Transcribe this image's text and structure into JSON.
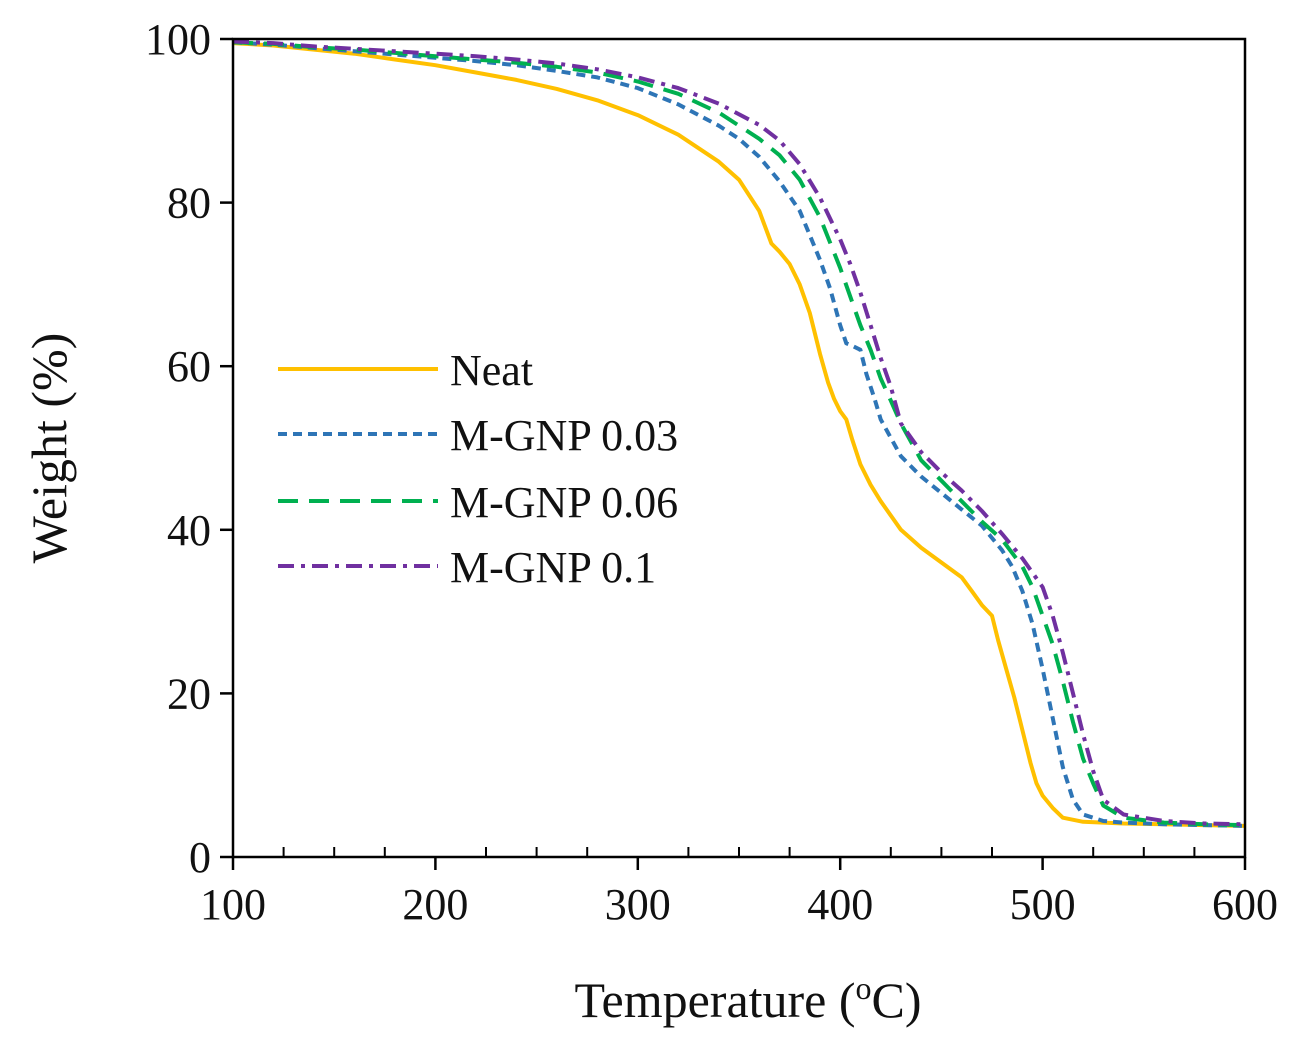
{
  "chart_data": {
    "type": "line",
    "title": "",
    "xlabel_main": "Temperature (",
    "xlabel_sup": "o",
    "xlabel_end": "C)",
    "ylabel": "Weight  (%)",
    "xlim": [
      100,
      600
    ],
    "ylim": [
      0,
      100
    ],
    "xticks": [
      100,
      200,
      300,
      400,
      500,
      600
    ],
    "yticks": [
      0,
      20,
      40,
      60,
      80,
      100
    ],
    "xtick_labels": [
      "100",
      "200",
      "300",
      "400",
      "500",
      "600"
    ],
    "ytick_labels": [
      "0",
      "20",
      "40",
      "60",
      "80",
      "100"
    ],
    "minor_x_step": 25,
    "legend_position": "center-left",
    "series": [
      {
        "name": "Neat",
        "color": "#FFC000",
        "dash": "solid",
        "x": [
          100,
          120,
          140,
          160,
          180,
          200,
          220,
          240,
          260,
          280,
          300,
          320,
          340,
          350,
          360,
          366,
          370,
          375,
          380,
          385,
          390,
          394,
          397,
          400,
          403,
          406,
          410,
          415,
          420,
          430,
          440,
          450,
          460,
          465,
          470,
          475,
          478,
          482,
          486,
          490,
          494,
          497,
          500,
          505,
          510,
          520,
          540,
          560,
          580,
          600
        ],
        "y": [
          99.5,
          99.2,
          98.7,
          98.2,
          97.5,
          96.8,
          95.9,
          95,
          93.9,
          92.5,
          90.7,
          88.3,
          85,
          82.8,
          79,
          75,
          74,
          72.5,
          70,
          66.5,
          61.5,
          58,
          56,
          54.5,
          53.5,
          51,
          48,
          45.5,
          43.5,
          40,
          37.8,
          36,
          34.2,
          32.5,
          30.8,
          29.5,
          26.5,
          23,
          19.5,
          15.5,
          11.5,
          9,
          7.5,
          6,
          4.8,
          4.3,
          4.1,
          4,
          3.9,
          3.8
        ]
      },
      {
        "name": "M-GNP 0.03",
        "color": "#2E75B6",
        "dash": "short",
        "x": [
          100,
          120,
          140,
          160,
          180,
          200,
          220,
          240,
          260,
          280,
          300,
          320,
          340,
          350,
          360,
          370,
          380,
          390,
          395,
          400,
          403,
          406,
          410,
          413,
          417,
          420,
          430,
          440,
          450,
          460,
          470,
          475,
          480,
          485,
          490,
          495,
          500,
          505,
          510,
          515,
          520,
          530,
          540,
          560,
          580,
          600
        ],
        "y": [
          99.6,
          99.3,
          98.9,
          98.5,
          98.1,
          97.7,
          97.3,
          96.8,
          96.1,
          95.3,
          94,
          92,
          89.4,
          87.8,
          85.6,
          82.6,
          79,
          73,
          69.5,
          65,
          62.8,
          62.5,
          62,
          59,
          56,
          53.5,
          49,
          46.5,
          44.5,
          42.5,
          40.5,
          39,
          37.5,
          35.5,
          32.5,
          28.5,
          23,
          17,
          11,
          7,
          5.2,
          4.4,
          4.2,
          4,
          3.9,
          3.8
        ]
      },
      {
        "name": "M-GNP 0.06",
        "color": "#00B050",
        "dash": "long",
        "x": [
          100,
          120,
          140,
          160,
          180,
          200,
          220,
          240,
          260,
          280,
          300,
          320,
          340,
          360,
          370,
          380,
          390,
          400,
          410,
          415,
          420,
          425,
          430,
          440,
          450,
          460,
          470,
          480,
          490,
          495,
          500,
          505,
          510,
          515,
          520,
          525,
          530,
          540,
          560,
          580,
          600
        ],
        "y": [
          99.6,
          99.4,
          99,
          98.7,
          98.3,
          97.9,
          97.5,
          97.1,
          96.6,
          95.9,
          94.8,
          93.3,
          91,
          87.8,
          85.8,
          82.8,
          78.2,
          72,
          65,
          62,
          58.5,
          55.8,
          53,
          48.5,
          46,
          43.5,
          41,
          38.8,
          35.5,
          33,
          29.5,
          26,
          21.5,
          16.5,
          12,
          9,
          6.3,
          4.8,
          4.2,
          4,
          3.9
        ]
      },
      {
        "name": "M-GNP 0.1",
        "color": "#7030A0",
        "dash": "dashdot",
        "x": [
          100,
          120,
          140,
          160,
          180,
          200,
          220,
          240,
          260,
          280,
          300,
          320,
          340,
          360,
          370,
          380,
          390,
          400,
          405,
          410,
          415,
          420,
          425,
          430,
          440,
          450,
          460,
          470,
          480,
          490,
          500,
          505,
          510,
          515,
          520,
          525,
          530,
          540,
          560,
          580,
          600
        ],
        "y": [
          99.7,
          99.5,
          99.1,
          98.8,
          98.5,
          98.2,
          97.9,
          97.5,
          97,
          96.3,
          95.3,
          94,
          92.1,
          89.5,
          87.6,
          84.7,
          80.6,
          75.5,
          72.5,
          69,
          65,
          61,
          57.5,
          53,
          49.5,
          47,
          44.8,
          42.3,
          39.5,
          36.5,
          33,
          29.5,
          25,
          20,
          15,
          10.5,
          7,
          5.2,
          4.4,
          4.1,
          4
        ]
      }
    ]
  }
}
